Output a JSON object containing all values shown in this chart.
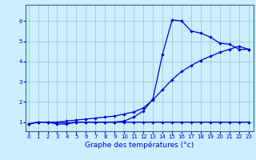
{
  "title": "Graphe des températures (°c)",
  "bg_color": "#cceeff",
  "grid_color": "#99cccc",
  "line_color": "#0000cc",
  "spine_color": "#336688",
  "x_ticks": [
    0,
    1,
    2,
    3,
    4,
    5,
    6,
    7,
    8,
    9,
    10,
    11,
    12,
    13,
    14,
    15,
    16,
    17,
    18,
    19,
    20,
    21,
    22,
    23
  ],
  "y_ticks": [
    1,
    2,
    3,
    4,
    5,
    6
  ],
  "xlim": [
    -0.3,
    23.5
  ],
  "ylim": [
    0.55,
    6.8
  ],
  "line1_x": [
    0,
    1,
    2,
    3,
    4,
    5,
    6,
    7,
    8,
    9,
    10,
    11,
    12,
    13,
    14,
    15,
    16,
    17,
    18,
    19,
    20,
    21,
    22,
    23
  ],
  "line1_y": [
    0.9,
    1.0,
    1.0,
    1.0,
    0.95,
    1.0,
    1.0,
    1.0,
    1.0,
    1.0,
    1.0,
    1.0,
    1.0,
    1.0,
    1.0,
    1.0,
    1.0,
    1.0,
    1.0,
    1.0,
    1.0,
    1.0,
    1.0,
    1.0
  ],
  "line2_x": [
    0,
    1,
    2,
    3,
    4,
    5,
    6,
    7,
    8,
    9,
    10,
    11,
    12,
    13,
    14,
    15,
    16,
    17,
    18,
    19,
    20,
    21,
    22,
    23
  ],
  "line2_y": [
    0.9,
    1.0,
    1.0,
    0.9,
    0.9,
    1.0,
    1.0,
    1.0,
    1.0,
    1.0,
    1.05,
    1.25,
    1.55,
    2.15,
    4.35,
    6.05,
    6.0,
    5.5,
    5.4,
    5.2,
    4.9,
    4.85,
    4.6,
    4.6
  ],
  "line3_x": [
    0,
    1,
    2,
    3,
    4,
    5,
    6,
    7,
    8,
    9,
    10,
    11,
    12,
    13,
    14,
    15,
    16,
    17,
    18,
    19,
    20,
    21,
    22,
    23
  ],
  "line3_y": [
    0.9,
    1.0,
    1.0,
    1.0,
    1.05,
    1.1,
    1.15,
    1.2,
    1.25,
    1.3,
    1.4,
    1.5,
    1.7,
    2.1,
    2.6,
    3.1,
    3.5,
    3.8,
    4.05,
    4.25,
    4.45,
    4.6,
    4.75,
    4.6
  ],
  "marker": "D",
  "markersize": 2.2,
  "linewidth": 0.9
}
